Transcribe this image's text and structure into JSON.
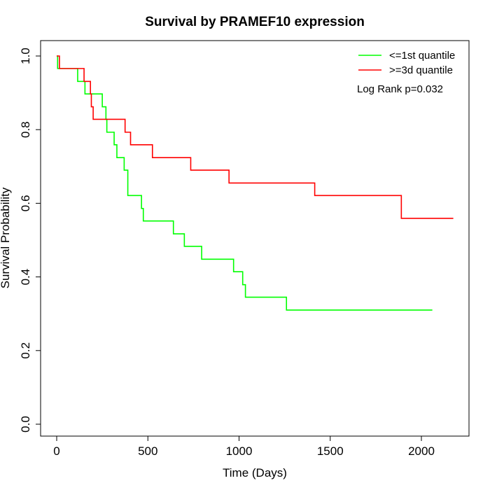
{
  "chart_data": {
    "type": "line",
    "title": "Survival by PRAMEF10 expression",
    "xlabel": "Time (Days)",
    "ylabel": "Survival Probability",
    "xlim": [
      0,
      2250
    ],
    "ylim": [
      0,
      1.05
    ],
    "x_ticks": [
      0,
      500,
      1000,
      1500,
      2000
    ],
    "y_ticks": [
      0.0,
      0.2,
      0.4,
      0.6,
      0.8,
      1.0
    ],
    "x_tick_labels": [
      "0",
      "500",
      "1000",
      "1500",
      "2000"
    ],
    "y_tick_labels": [
      "0.0",
      "0.2",
      "0.4",
      "0.6",
      "0.8",
      "1.0"
    ],
    "grid": false,
    "legend_position": "top-right",
    "annotation": "Log Rank p=0.032",
    "series": [
      {
        "name": "<=1st quantile",
        "color": "#00ff00",
        "steps": [
          [
            0,
            1.0
          ],
          [
            5,
            0.966
          ],
          [
            115,
            0.931
          ],
          [
            155,
            0.897
          ],
          [
            250,
            0.862
          ],
          [
            270,
            0.828
          ],
          [
            275,
            0.793
          ],
          [
            315,
            0.759
          ],
          [
            330,
            0.724
          ],
          [
            370,
            0.69
          ],
          [
            390,
            0.621
          ],
          [
            465,
            0.586
          ],
          [
            475,
            0.552
          ],
          [
            640,
            0.517
          ],
          [
            700,
            0.483
          ],
          [
            795,
            0.448
          ],
          [
            970,
            0.414
          ],
          [
            1020,
            0.379
          ],
          [
            1035,
            0.345
          ],
          [
            1260,
            0.31
          ],
          [
            2060,
            0.31
          ]
        ]
      },
      {
        "name": ">=3d quantile",
        "color": "#ff0000",
        "steps": [
          [
            0,
            1.0
          ],
          [
            15,
            0.966
          ],
          [
            150,
            0.931
          ],
          [
            185,
            0.897
          ],
          [
            190,
            0.862
          ],
          [
            200,
            0.828
          ],
          [
            375,
            0.793
          ],
          [
            405,
            0.759
          ],
          [
            525,
            0.724
          ],
          [
            735,
            0.69
          ],
          [
            945,
            0.655
          ],
          [
            1415,
            0.621
          ],
          [
            1890,
            0.559
          ],
          [
            2175,
            0.559
          ]
        ]
      }
    ]
  }
}
